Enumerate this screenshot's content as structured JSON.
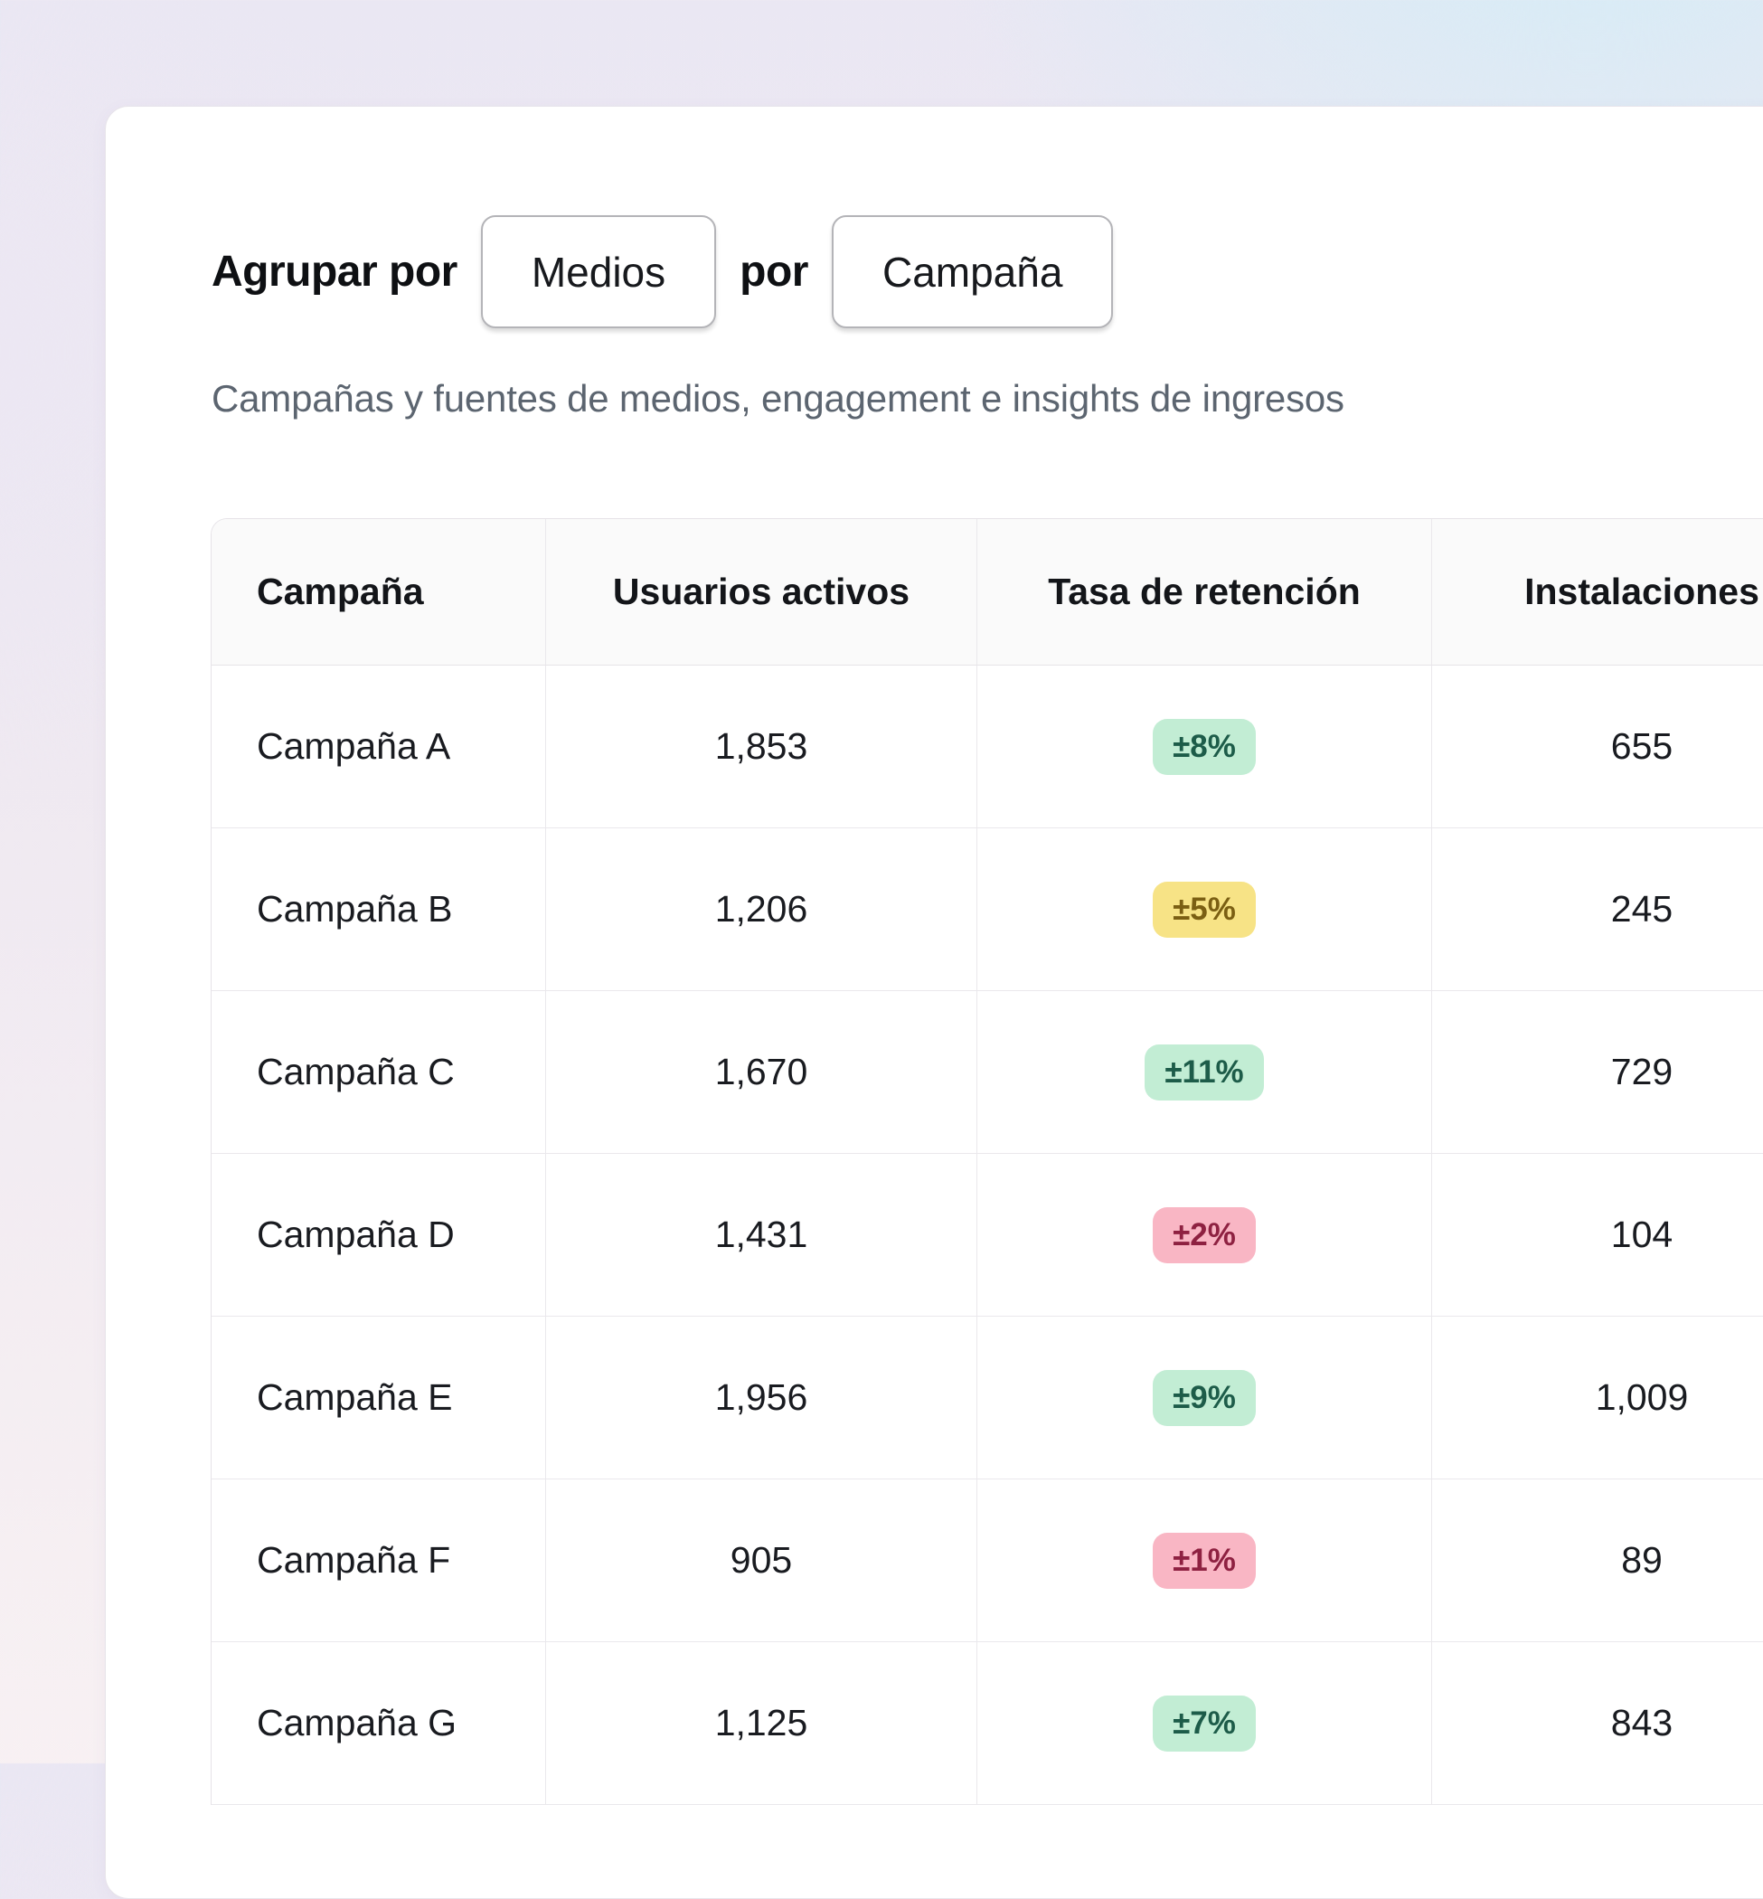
{
  "controls": {
    "group_by_label": "Agrupar por",
    "primary_group": "Medios",
    "connector_label": "por",
    "secondary_group": "Campaña",
    "subtitle": "Campañas y fuentes de medios, engagement e insights de ingresos"
  },
  "table": {
    "columns": [
      {
        "label": "Campaña",
        "align": "left"
      },
      {
        "label": "Usuarios activos",
        "align": "center"
      },
      {
        "label": "Tasa de retención",
        "align": "center"
      },
      {
        "label": "Instalaciones",
        "align": "center"
      }
    ],
    "rows": [
      {
        "campaign": "Campaña A",
        "active_users": "1,853",
        "retention": "±8%",
        "retention_tone": "green",
        "installs": "655"
      },
      {
        "campaign": "Campaña B",
        "active_users": "1,206",
        "retention": "±5%",
        "retention_tone": "yellow",
        "installs": "245"
      },
      {
        "campaign": "Campaña C",
        "active_users": "1,670",
        "retention": "±11%",
        "retention_tone": "green",
        "installs": "729"
      },
      {
        "campaign": "Campaña D",
        "active_users": "1,431",
        "retention": "±2%",
        "retention_tone": "red",
        "installs": "104"
      },
      {
        "campaign": "Campaña E",
        "active_users": "1,956",
        "retention": "±9%",
        "retention_tone": "green",
        "installs": "1,009"
      },
      {
        "campaign": "Campaña F",
        "active_users": "905",
        "retention": "±1%",
        "retention_tone": "red",
        "installs": "89"
      },
      {
        "campaign": "Campaña G",
        "active_users": "1,125",
        "retention": "±7%",
        "retention_tone": "green",
        "installs": "843"
      }
    ]
  },
  "colors": {
    "badge_green_bg": "#c2edd4",
    "badge_green_text": "#1d5c49",
    "badge_yellow_bg": "#f7e386",
    "badge_yellow_text": "#7b5f13",
    "badge_red_bg": "#f9b6c4",
    "badge_red_text": "#8e2141"
  }
}
